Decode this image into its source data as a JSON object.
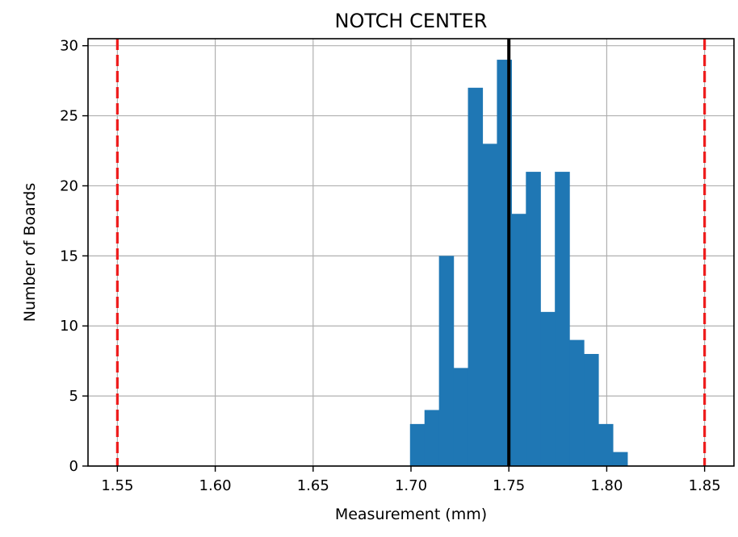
{
  "chart_data": {
    "type": "bar",
    "title": "NOTCH CENTER",
    "xlabel": "Measurement (mm)",
    "ylabel": "Number of Boards",
    "xlim": [
      1.535,
      1.865
    ],
    "ylim": [
      0,
      30.5
    ],
    "xticks": [
      "1.55",
      "1.60",
      "1.65",
      "1.70",
      "1.75",
      "1.80",
      "1.85"
    ],
    "yticks": [
      "0",
      "5",
      "10",
      "15",
      "20",
      "25",
      "30"
    ],
    "grid": true,
    "bar_color": "#1f77b4",
    "bins": [
      {
        "x0": 1.6995,
        "x1": 1.7069,
        "value": 3
      },
      {
        "x0": 1.7069,
        "x1": 1.7143,
        "value": 4
      },
      {
        "x0": 1.7143,
        "x1": 1.7217,
        "value": 15
      },
      {
        "x0": 1.7217,
        "x1": 1.7291,
        "value": 7
      },
      {
        "x0": 1.7291,
        "x1": 1.7365,
        "value": 27
      },
      {
        "x0": 1.7365,
        "x1": 1.7439,
        "value": 23
      },
      {
        "x0": 1.7439,
        "x1": 1.7513,
        "value": 29
      },
      {
        "x0": 1.7513,
        "x1": 1.7587,
        "value": 18
      },
      {
        "x0": 1.7587,
        "x1": 1.7661,
        "value": 21
      },
      {
        "x0": 1.7661,
        "x1": 1.7735,
        "value": 11
      },
      {
        "x0": 1.7735,
        "x1": 1.7809,
        "value": 21
      },
      {
        "x0": 1.7809,
        "x1": 1.7883,
        "value": 9
      },
      {
        "x0": 1.7883,
        "x1": 1.7957,
        "value": 8
      },
      {
        "x0": 1.7957,
        "x1": 1.8031,
        "value": 3
      },
      {
        "x0": 1.8031,
        "x1": 1.8105,
        "value": 1
      }
    ],
    "reference_lines": [
      {
        "x": 1.55,
        "style": "dashed",
        "color": "#ee1c1c"
      },
      {
        "x": 1.85,
        "style": "dashed",
        "color": "#ee1c1c"
      },
      {
        "x": 1.75,
        "style": "solid",
        "color": "#000000"
      }
    ]
  }
}
